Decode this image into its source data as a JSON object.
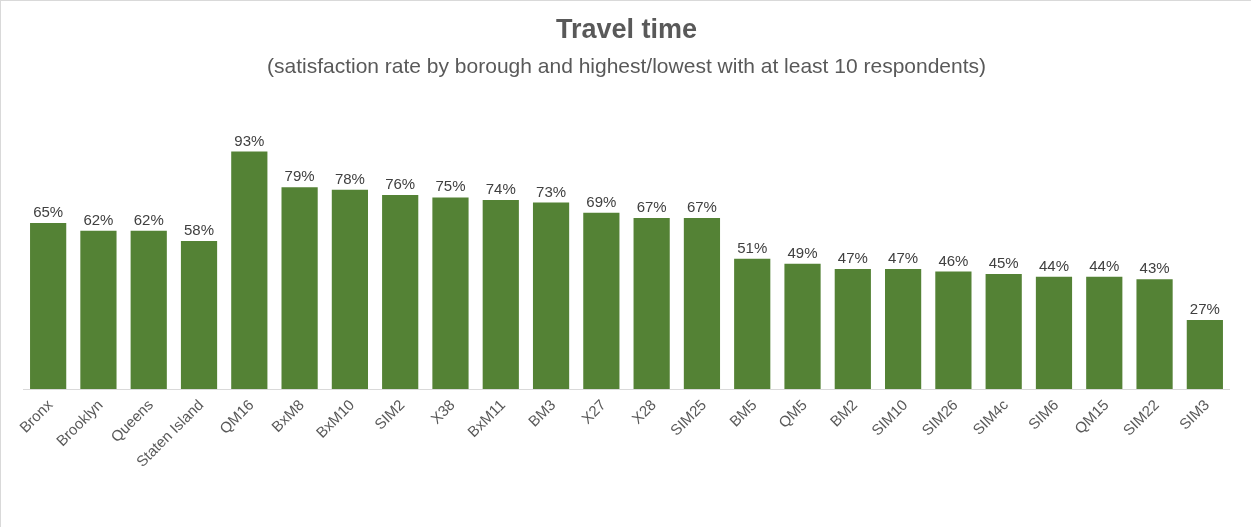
{
  "chart_data": {
    "type": "bar",
    "title": "Travel time",
    "subtitle": "(satisfaction rate by borough and highest/lowest with at least 10 respondents)",
    "categories": [
      "Bronx",
      "Brooklyn",
      "Queens",
      "Staten Island",
      "QM16",
      "BxM8",
      "BxM10",
      "SIM2",
      "X38",
      "BxM11",
      "BM3",
      "X27",
      "X28",
      "SIM25",
      "BM5",
      "QM5",
      "BM2",
      "SIM10",
      "SIM26",
      "SIM4c",
      "SIM6",
      "QM15",
      "SIM22",
      "SIM3"
    ],
    "values": [
      65,
      62,
      62,
      58,
      93,
      79,
      78,
      76,
      75,
      74,
      73,
      69,
      67,
      67,
      51,
      49,
      47,
      47,
      46,
      45,
      44,
      44,
      43,
      27
    ],
    "value_labels": [
      "65%",
      "62%",
      "62%",
      "58%",
      "93%",
      "79%",
      "78%",
      "76%",
      "75%",
      "74%",
      "73%",
      "69%",
      "67%",
      "67%",
      "51%",
      "49%",
      "47%",
      "47%",
      "46%",
      "45%",
      "44%",
      "44%",
      "43%",
      "27%"
    ],
    "color": "#548235",
    "tick_labels": "x"
  }
}
